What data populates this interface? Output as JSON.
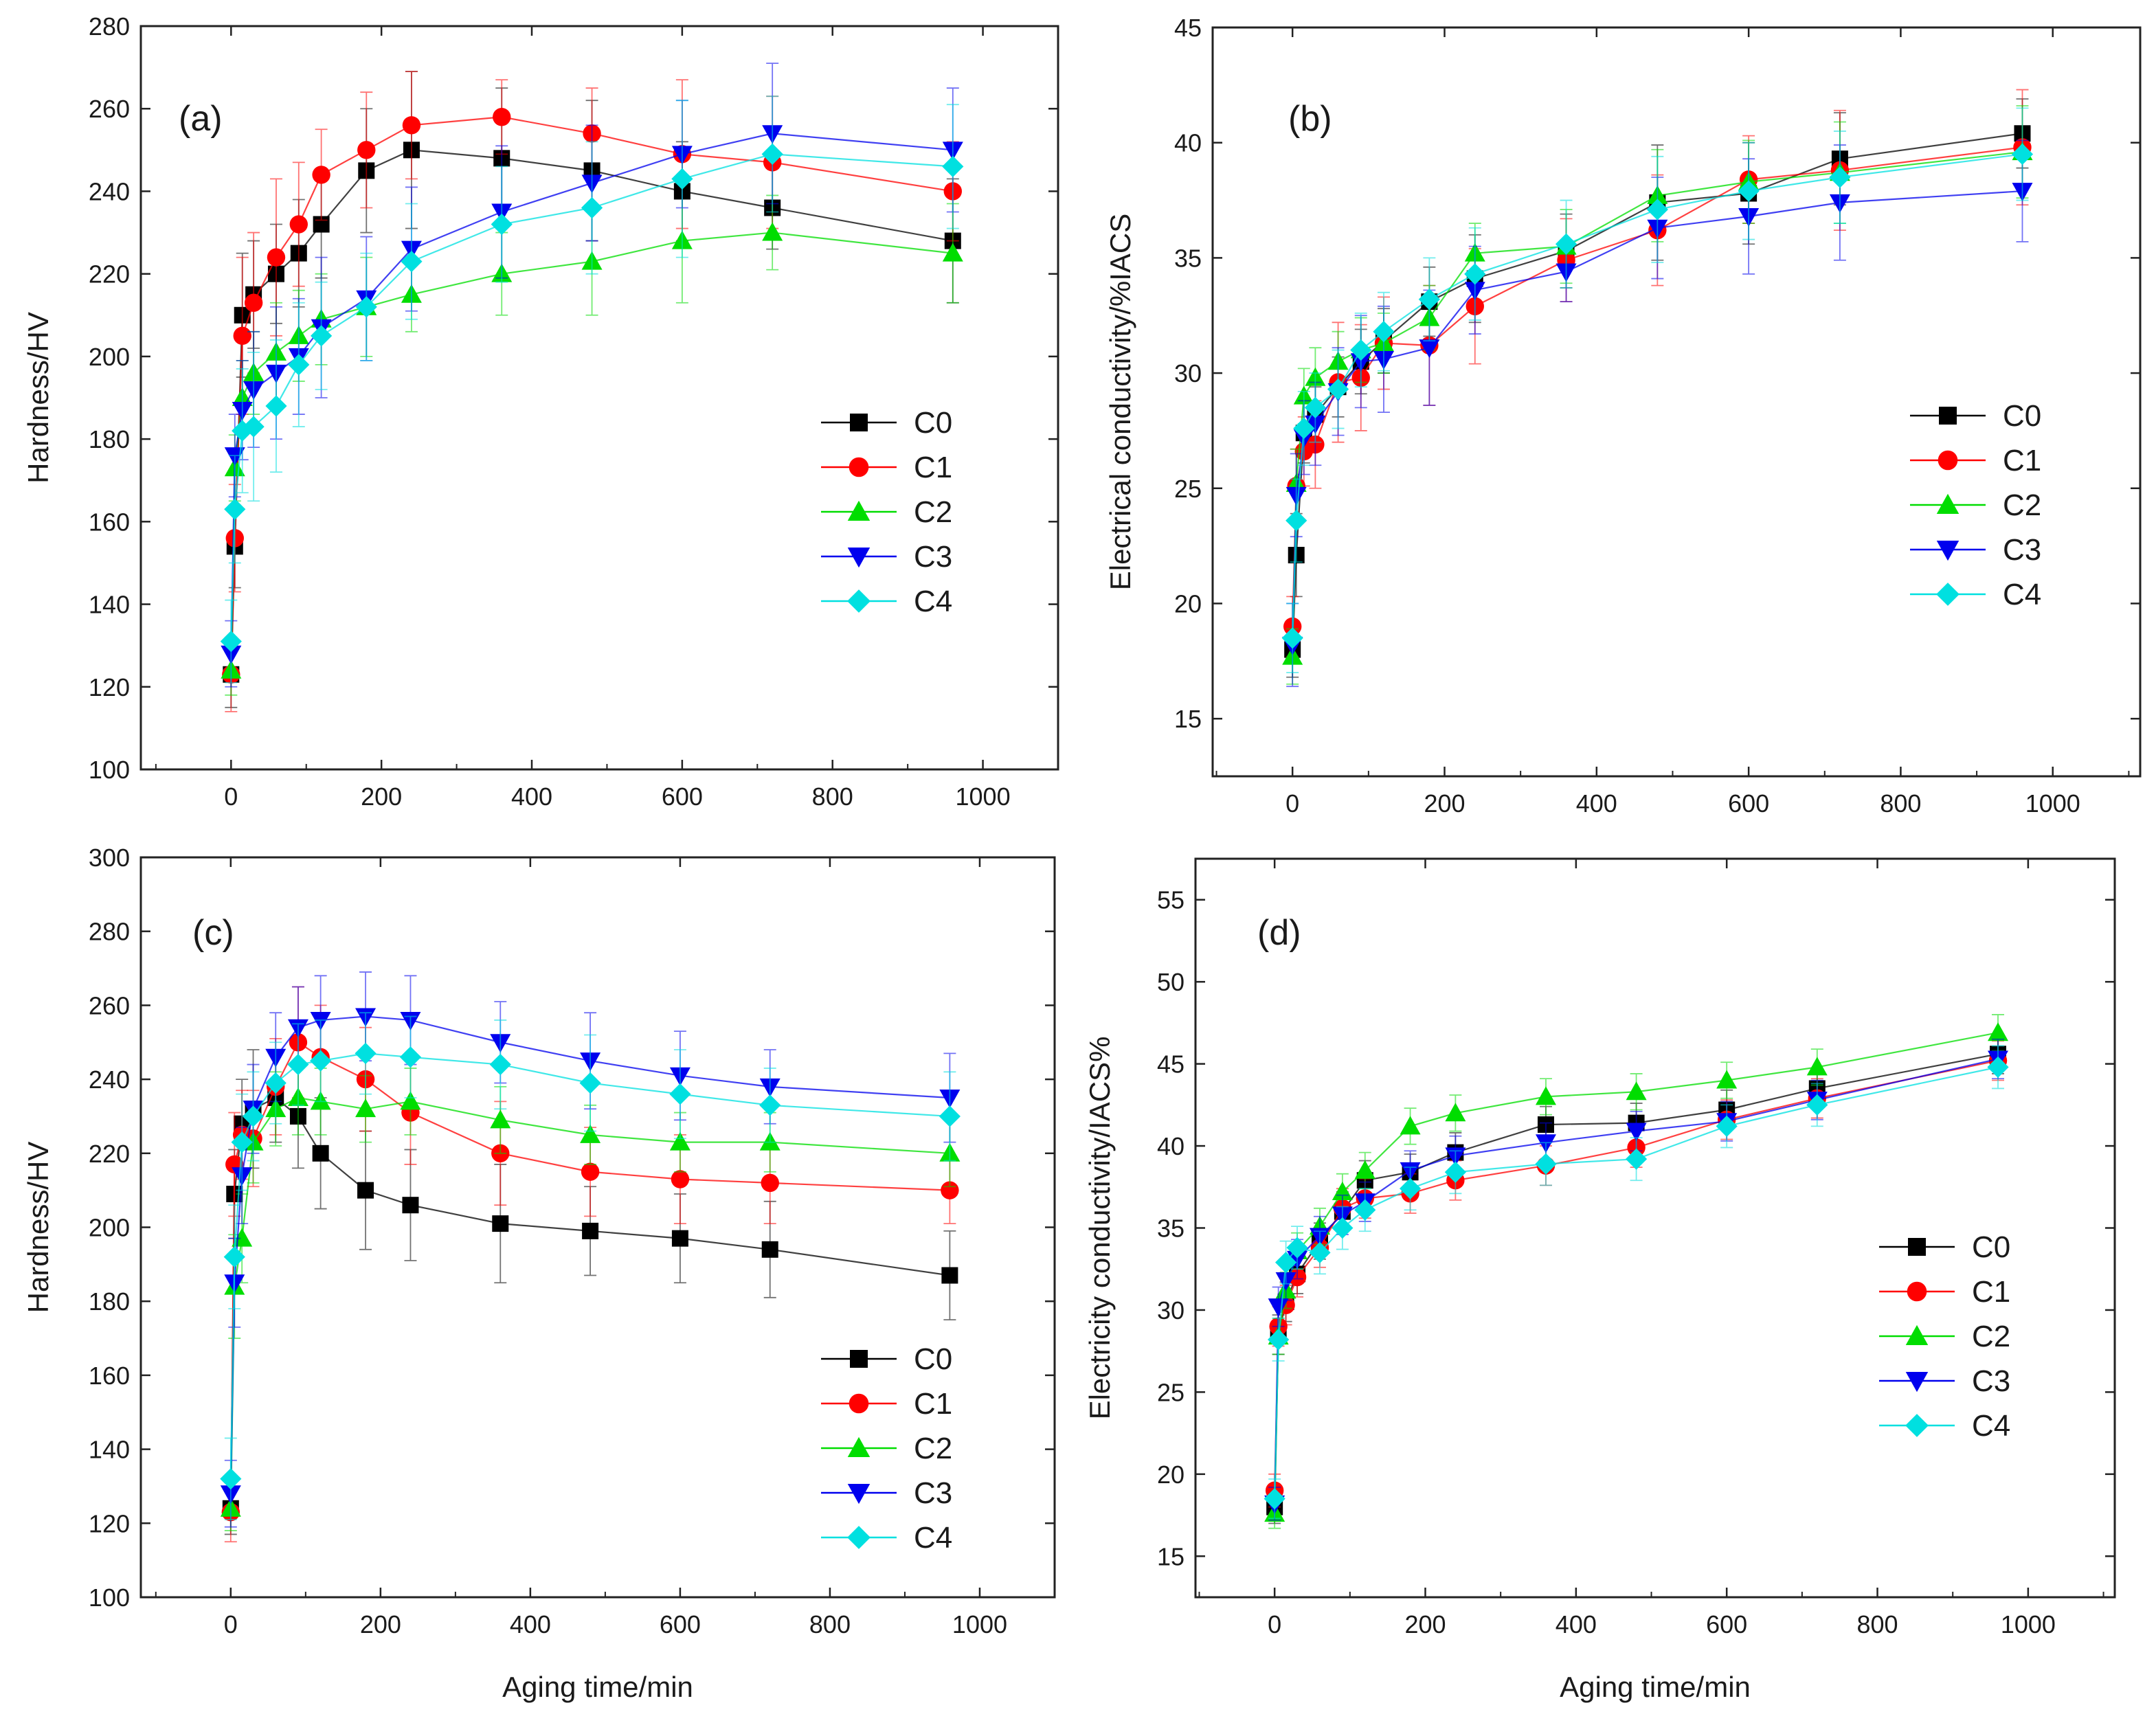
{
  "figure": {
    "caption": ""
  },
  "chart_data": [
    {
      "id": "a",
      "type": "line",
      "panel_label": "(a)",
      "xlabel": "",
      "ylabel": "Hardness/HV",
      "xlim": [
        -120,
        1100
      ],
      "ylim": [
        100,
        280
      ],
      "xticks": [
        0,
        200,
        400,
        600,
        800,
        1000
      ],
      "yticks": [
        100,
        120,
        140,
        160,
        180,
        200,
        220,
        240,
        260,
        280
      ],
      "legend_position": "right-middle",
      "x": [
        0,
        5,
        15,
        30,
        60,
        90,
        120,
        180,
        240,
        360,
        480,
        600,
        720,
        960
      ],
      "series": [
        {
          "name": "C0",
          "values": [
            123,
            154,
            210,
            215,
            220,
            225,
            232,
            245,
            250,
            248,
            245,
            240,
            236,
            228
          ],
          "err": [
            8,
            10,
            15,
            13,
            12,
            13,
            13,
            15,
            19,
            17,
            17,
            12,
            10,
            15
          ]
        },
        {
          "name": "C1",
          "values": [
            123,
            156,
            205,
            213,
            224,
            232,
            244,
            250,
            256,
            258,
            254,
            249,
            247,
            240
          ],
          "err": [
            9,
            13,
            19,
            17,
            19,
            15,
            11,
            14,
            13,
            9,
            11,
            18,
            16,
            12
          ]
        },
        {
          "name": "C2",
          "values": [
            124,
            173,
            190,
            196,
            201,
            205,
            209,
            212,
            215,
            220,
            223,
            228,
            230,
            225
          ],
          "err": [
            6,
            8,
            9,
            10,
            12,
            11,
            11,
            12,
            9,
            10,
            13,
            15,
            9,
            12
          ]
        },
        {
          "name": "C3",
          "values": [
            128,
            176,
            187,
            192,
            196,
            200,
            207,
            214,
            226,
            235,
            242,
            249,
            254,
            250
          ],
          "err": [
            8,
            10,
            12,
            14,
            16,
            14,
            17,
            15,
            15,
            16,
            14,
            13,
            17,
            15
          ]
        },
        {
          "name": "C4",
          "values": [
            131,
            163,
            182,
            183,
            188,
            198,
            205,
            212,
            223,
            232,
            236,
            243,
            249,
            246
          ],
          "err": [
            10,
            13,
            15,
            18,
            16,
            15,
            13,
            13,
            14,
            14,
            16,
            19,
            14,
            15
          ]
        }
      ]
    },
    {
      "id": "b",
      "type": "line",
      "panel_label": "(b)",
      "xlabel": "",
      "ylabel": "Electrical conductivity/%IACS",
      "xlim": [
        -105,
        1115
      ],
      "ylim": [
        12.5,
        45
      ],
      "xticks": [
        0,
        200,
        400,
        600,
        800,
        1000
      ],
      "yticks": [
        15,
        20,
        25,
        30,
        35,
        40,
        45
      ],
      "legend_position": "right-middle",
      "x": [
        0,
        5,
        15,
        30,
        60,
        90,
        120,
        180,
        240,
        360,
        480,
        600,
        720,
        960
      ],
      "series": [
        {
          "name": "C0",
          "values": [
            18,
            22.1,
            27.4,
            28.2,
            29.4,
            30.5,
            31.4,
            33.1,
            34.1,
            35.3,
            37.4,
            37.8,
            39.3,
            40.4
          ],
          "err": [
            1.2,
            1.8,
            1.3,
            1.2,
            1.3,
            1.4,
            1.4,
            1.5,
            1.9,
            1.6,
            2.5,
            2.2,
            2,
            1.5
          ]
        },
        {
          "name": "C1",
          "values": [
            19,
            25.1,
            26.6,
            26.9,
            29.6,
            29.8,
            31.3,
            31.2,
            32.9,
            34.9,
            36.2,
            38.4,
            38.8,
            39.8
          ],
          "err": [
            1.3,
            1.6,
            1.5,
            1.9,
            2.6,
            2.3,
            2,
            2.6,
            2.5,
            1.8,
            2.4,
            1.9,
            2.6,
            2.5
          ]
        },
        {
          "name": "C2",
          "values": [
            17.7,
            25.2,
            29,
            29.8,
            30.5,
            31,
            31.3,
            32.4,
            35.2,
            35.5,
            37.7,
            38.3,
            38.7,
            39.6
          ],
          "err": [
            1.2,
            1.5,
            1.2,
            1.3,
            1.3,
            1.4,
            1.3,
            1.4,
            1.3,
            1.6,
            2,
            1.8,
            2.2,
            2
          ]
        },
        {
          "name": "C3",
          "values": [
            18.2,
            24.7,
            27.2,
            27.8,
            29.2,
            30.5,
            30.6,
            31.1,
            33.6,
            34.4,
            36.3,
            36.8,
            37.4,
            37.9
          ],
          "err": [
            1.8,
            1.8,
            1.6,
            1.8,
            1.9,
            2,
            2.3,
            2.5,
            1.9,
            1.3,
            2.2,
            2.5,
            2.5,
            2.2
          ]
        },
        {
          "name": "C4",
          "values": [
            18.5,
            23.6,
            27.6,
            28.5,
            29.3,
            31,
            31.8,
            33.2,
            34.3,
            35.6,
            37.1,
            37.9,
            38.5,
            39.5
          ],
          "err": [
            1.5,
            1.8,
            1.6,
            1.5,
            1.7,
            1.6,
            1.7,
            1.8,
            2,
            1.9,
            2.3,
            2.1,
            2,
            2
          ]
        }
      ]
    },
    {
      "id": "c",
      "type": "line",
      "panel_label": "(c)",
      "xlabel": "Aging time/min",
      "ylabel": "Hardness/HV",
      "xlim": [
        -120,
        1100
      ],
      "ylim": [
        100,
        300
      ],
      "xticks": [
        0,
        200,
        400,
        600,
        800,
        1000
      ],
      "yticks": [
        100,
        120,
        140,
        160,
        180,
        200,
        220,
        240,
        260,
        280,
        300
      ],
      "legend_position": "bottom-right",
      "x": [
        0,
        5,
        15,
        30,
        60,
        90,
        120,
        180,
        240,
        360,
        480,
        600,
        720,
        960
      ],
      "series": [
        {
          "name": "C0",
          "values": [
            124,
            209,
            228,
            232,
            235,
            230,
            220,
            210,
            206,
            201,
            199,
            197,
            194,
            187
          ],
          "err": [
            7,
            12,
            12,
            16,
            12,
            14,
            15,
            16,
            15,
            16,
            12,
            12,
            13,
            12
          ]
        },
        {
          "name": "C1",
          "values": [
            123,
            217,
            225,
            224,
            238,
            250,
            246,
            240,
            231,
            220,
            215,
            213,
            212,
            210
          ],
          "err": [
            8,
            14,
            12,
            13,
            13,
            15,
            14,
            14,
            14,
            14,
            12,
            12,
            11,
            9
          ]
        },
        {
          "name": "C2",
          "values": [
            124,
            184,
            197,
            223,
            232,
            235,
            234,
            232,
            234,
            229,
            225,
            223,
            223,
            220
          ],
          "err": [
            6,
            14,
            12,
            11,
            10,
            10,
            9,
            9,
            9,
            9,
            8,
            8,
            8,
            9
          ]
        },
        {
          "name": "C3",
          "values": [
            128,
            185,
            214,
            232,
            246,
            254,
            256,
            257,
            256,
            250,
            245,
            241,
            238,
            235
          ],
          "err": [
            9,
            12,
            13,
            12,
            12,
            11,
            12,
            12,
            12,
            11,
            13,
            12,
            10,
            12
          ]
        },
        {
          "name": "C4",
          "values": [
            132,
            192,
            223,
            230,
            239,
            244,
            245,
            247,
            246,
            244,
            239,
            236,
            233,
            230
          ],
          "err": [
            11,
            14,
            13,
            12,
            11,
            11,
            11,
            11,
            11,
            12,
            13,
            12,
            10,
            12
          ]
        }
      ]
    },
    {
      "id": "d",
      "type": "line",
      "panel_label": "(d)",
      "xlabel": "Aging time/min",
      "ylabel": "Electricity conductivity/IACS%",
      "xlim": [
        -105,
        1115
      ],
      "ylim": [
        12.5,
        57.5
      ],
      "xticks": [
        0,
        200,
        400,
        600,
        800,
        1000
      ],
      "yticks": [
        15,
        20,
        25,
        30,
        35,
        40,
        45,
        50,
        55
      ],
      "legend_position": "right-middle",
      "x": [
        0,
        5,
        15,
        30,
        60,
        90,
        120,
        180,
        240,
        360,
        480,
        600,
        720,
        960
      ],
      "series": [
        {
          "name": "C0",
          "values": [
            18,
            28.5,
            30.5,
            32.2,
            34.2,
            36,
            37.9,
            38.4,
            39.6,
            41.3,
            41.4,
            42.2,
            43.5,
            45.6
          ],
          "err": [
            1,
            1.2,
            1.2,
            1.2,
            1.1,
            1.2,
            1.2,
            1.1,
            1.2,
            1.1,
            1.2,
            1.2,
            1.2,
            1.2
          ]
        },
        {
          "name": "C1",
          "values": [
            19,
            29,
            30.3,
            32,
            33.8,
            36.2,
            36.8,
            37.1,
            37.9,
            38.8,
            39.9,
            41.6,
            42.9,
            45.2
          ],
          "err": [
            1,
            1.2,
            1.2,
            1.2,
            1.2,
            1.2,
            1.2,
            1.2,
            1.2,
            1.2,
            1.2,
            1.2,
            1.2,
            1.2
          ]
        },
        {
          "name": "C2",
          "values": [
            17.6,
            28.4,
            31.2,
            33.6,
            35.1,
            37.2,
            38.5,
            41.2,
            42,
            43,
            43.3,
            44,
            44.8,
            46.9
          ],
          "err": [
            0.9,
            1.1,
            1.1,
            1.1,
            1.1,
            1.1,
            1.1,
            1.1,
            1.1,
            1.1,
            1.1,
            1.1,
            1.1,
            1.1
          ]
        },
        {
          "name": "C3",
          "values": [
            18.2,
            30.2,
            31.8,
            33.1,
            34.5,
            35.8,
            36.6,
            38.5,
            39.4,
            40.2,
            40.9,
            41.5,
            42.8,
            45.3
          ],
          "err": [
            1,
            1.2,
            1.2,
            1.2,
            1.2,
            1.2,
            1.2,
            1.2,
            1.2,
            1.2,
            1.2,
            1.2,
            1.2,
            1.2
          ]
        },
        {
          "name": "C4",
          "values": [
            18.5,
            28.2,
            32.9,
            33.8,
            33.5,
            35,
            36.1,
            37.4,
            38.4,
            38.9,
            39.2,
            41.2,
            42.5,
            44.8
          ],
          "err": [
            1.2,
            1.3,
            1.3,
            1.3,
            1.3,
            1.3,
            1.3,
            1.3,
            1.3,
            1.3,
            1.3,
            1.3,
            1.3,
            1.3
          ]
        }
      ]
    }
  ],
  "series_style": {
    "C0": {
      "color": "#000000",
      "marker": "square"
    },
    "C1": {
      "color": "#ff0000",
      "marker": "circle"
    },
    "C2": {
      "color": "#00dd00",
      "marker": "triangle-up"
    },
    "C3": {
      "color": "#0000ee",
      "marker": "triangle-down"
    },
    "C4": {
      "color": "#00e0e0",
      "marker": "diamond"
    }
  }
}
